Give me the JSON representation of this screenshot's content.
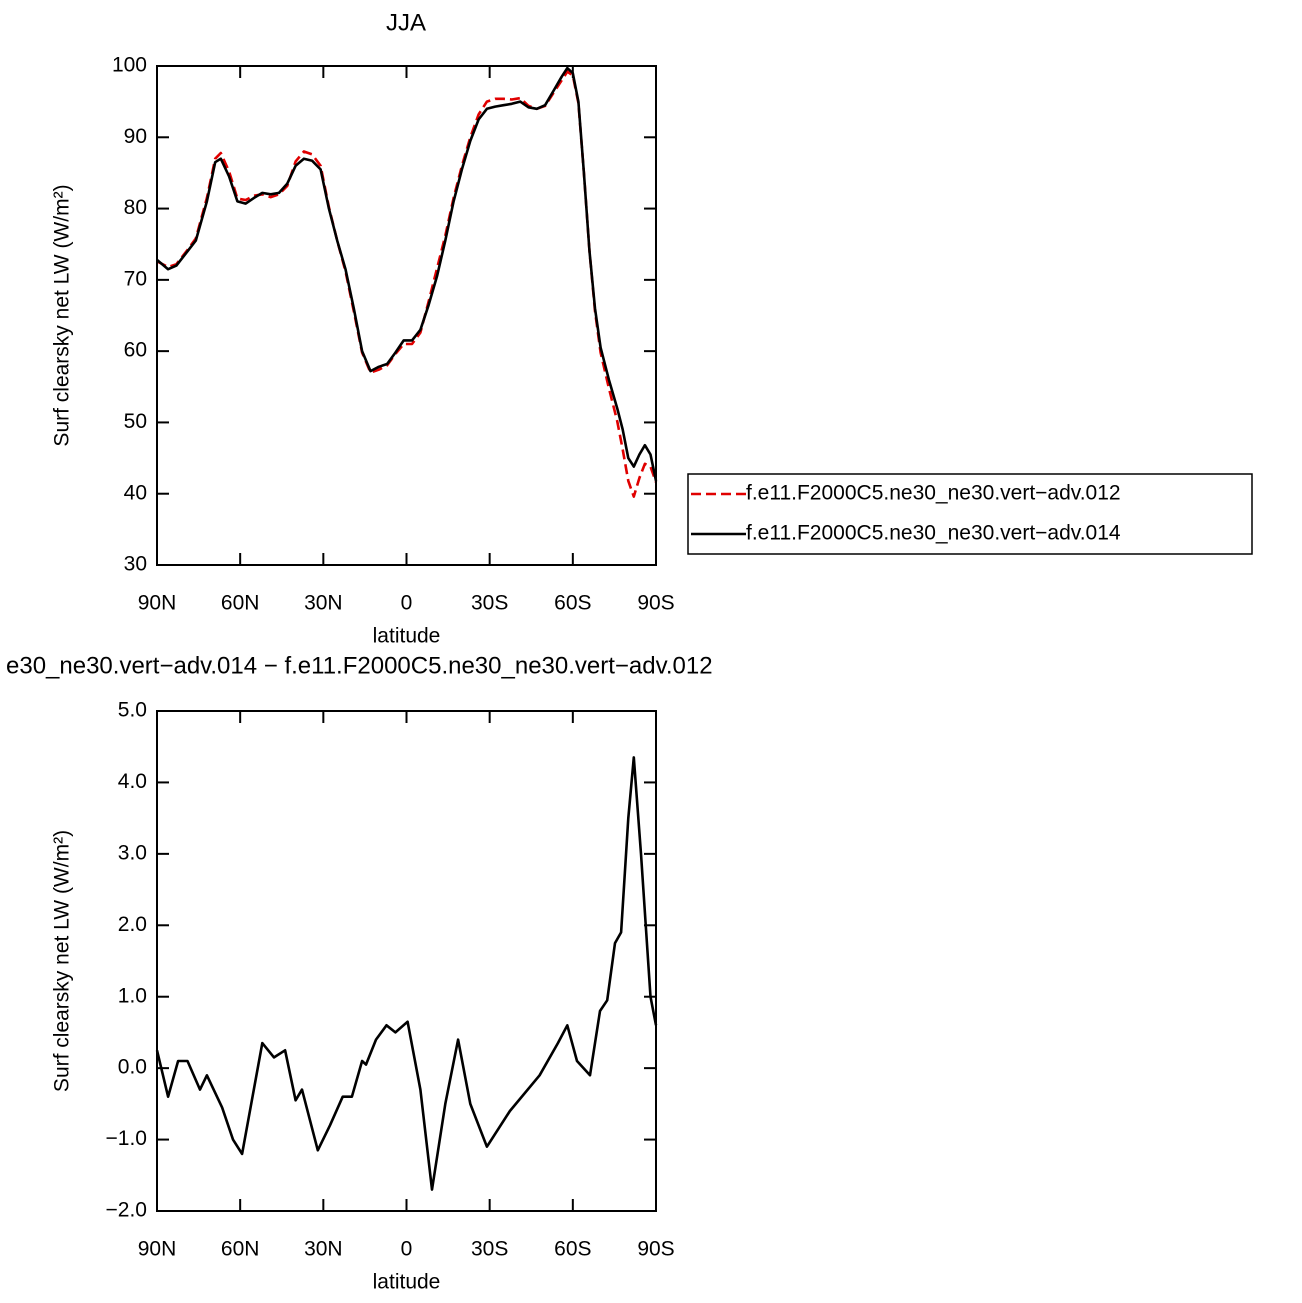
{
  "chart_data": [
    {
      "type": "line",
      "title": "JJA",
      "xlabel": "latitude",
      "ylabel": "Surf clearsky net LW (W/m²)",
      "xlim": [
        90,
        -90
      ],
      "xticks": [
        {
          "value": 90,
          "label": "90N"
        },
        {
          "value": 60,
          "label": "60N"
        },
        {
          "value": 30,
          "label": "30N"
        },
        0,
        {
          "value": -30,
          "label": "30S"
        },
        {
          "value": -60,
          "label": "60S"
        },
        {
          "value": -90,
          "label": "90S"
        }
      ],
      "ylim": [
        30,
        100
      ],
      "yticks": [
        30,
        40,
        50,
        60,
        70,
        80,
        90,
        100
      ],
      "legend": "right",
      "x": [
        90,
        86,
        83,
        79,
        76,
        72,
        69,
        67,
        64,
        61,
        58,
        55,
        52,
        49,
        46,
        43,
        40,
        37,
        34,
        31,
        28,
        25,
        22,
        19,
        16,
        13,
        10,
        7,
        4,
        1,
        -2,
        -5,
        -8,
        -11,
        -14,
        -17,
        -20,
        -23,
        -26,
        -29,
        -32,
        -35,
        -38,
        -41,
        -44,
        -47,
        -50,
        -53,
        -56,
        -58,
        -60,
        -62,
        -64,
        -66,
        -68,
        -70,
        -73,
        -76,
        -78,
        -80,
        -82,
        -84,
        -86,
        -88,
        -90
      ],
      "series": [
        {
          "name": "f.e11.F2000C5.ne30_ne30.vert−adv.012",
          "color": "#e00000",
          "style": "dashed",
          "values": [
            72.6,
            71.8,
            72.2,
            74.2,
            75.8,
            81.5,
            87,
            87.8,
            85.2,
            81.4,
            81.2,
            81.8,
            82.0,
            81.6,
            82.0,
            83.2,
            86.6,
            88.0,
            87.6,
            86.0,
            80.2,
            75.5,
            71.2,
            65.6,
            59.8,
            57.0,
            57.4,
            58.0,
            59.6,
            61.0,
            61.0,
            62.6,
            67.0,
            71.6,
            76.2,
            81.5,
            86.0,
            90.0,
            93.2,
            95.0,
            95.4,
            95.4,
            95.3,
            95.5,
            94.4,
            94.0,
            94.4,
            96.2,
            98.0,
            99.2,
            98.7,
            94.8,
            85.0,
            74.0,
            65.6,
            59.8,
            54.8,
            50.2,
            46.2,
            41.8,
            39.6,
            42.2,
            44.2,
            43.8,
            41.6
          ]
        },
        {
          "name": "f.e11.F2000C5.ne30_ne30.vert−adv.014",
          "color": "#000000",
          "style": "solid",
          "values": [
            72.8,
            71.5,
            72.0,
            74.0,
            75.5,
            81.0,
            86.5,
            87.0,
            84.5,
            81.0,
            80.7,
            81.5,
            82.2,
            82.0,
            82.2,
            83.5,
            86.0,
            87.0,
            86.7,
            85.5,
            80.0,
            75.5,
            71.5,
            66.0,
            60.0,
            57.2,
            57.8,
            58.2,
            59.8,
            61.5,
            61.5,
            63.0,
            66.5,
            70.5,
            75.5,
            81.0,
            85.5,
            89.5,
            92.5,
            94.0,
            94.3,
            94.5,
            94.7,
            95.0,
            94.2,
            94.0,
            94.5,
            96.5,
            98.5,
            99.7,
            99.0,
            95.0,
            85.0,
            74.0,
            66.0,
            60.5,
            56.0,
            52.0,
            49.0,
            45.0,
            43.8,
            45.5,
            46.8,
            45.5,
            41.8
          ]
        }
      ]
    },
    {
      "type": "line",
      "title": "e30_ne30.vert−adv.014 − f.e11.F2000C5.ne30_ne30.vert−adv.012",
      "xlabel": "latitude",
      "ylabel": "Surf clearsky net LW (W/m²)",
      "xlim": [
        90,
        -90
      ],
      "xticks": [
        {
          "value": 90,
          "label": "90N"
        },
        {
          "value": 60,
          "label": "60N"
        },
        {
          "value": 30,
          "label": "30N"
        },
        0,
        {
          "value": -30,
          "label": "30S"
        },
        {
          "value": -60,
          "label": "60S"
        },
        {
          "value": -90,
          "label": "90S"
        }
      ],
      "ylim": [
        -2,
        5
      ],
      "yticks": [
        {
          "value": -2,
          "label": "−2.0"
        },
        {
          "value": -1,
          "label": "−1.0"
        },
        {
          "value": 0,
          "label": "0.0"
        },
        {
          "value": 1,
          "label": "1.0"
        },
        {
          "value": 2,
          "label": "2.0"
        },
        {
          "value": 3,
          "label": "3.0"
        },
        {
          "value": 4,
          "label": "4.0"
        },
        {
          "value": 5,
          "label": "5.0"
        }
      ],
      "color": "#000000",
      "x": [
        90,
        86,
        82.4,
        79,
        74.5,
        72,
        66.5,
        62.6,
        59.3,
        52,
        47.8,
        43.8,
        40,
        37.7,
        32,
        27.6,
        23,
        19.7,
        16,
        14.6,
        11,
        7.2,
        4,
        -0.4,
        -5,
        -9.2,
        -14,
        -18.6,
        -23,
        -29,
        -37.3,
        -48,
        -54.6,
        -58,
        -61.5,
        -66.2,
        -69.8,
        -72.4,
        -75.2,
        -77.4,
        -80,
        -82,
        -84.6,
        -88,
        -90
      ],
      "values": [
        0.25,
        -0.4,
        0.1,
        0.1,
        -0.3,
        -0.1,
        -0.55,
        -1.0,
        -1.2,
        0.35,
        0.15,
        0.25,
        -0.45,
        -0.3,
        -1.15,
        -0.8,
        -0.4,
        -0.4,
        0.1,
        0.05,
        0.4,
        0.6,
        0.5,
        0.65,
        -0.3,
        -1.7,
        -0.5,
        0.4,
        -0.5,
        -1.1,
        -0.6,
        -0.1,
        0.35,
        0.6,
        0.1,
        -0.1,
        0.8,
        0.95,
        1.75,
        1.9,
        3.5,
        4.35,
        3.0,
        1.0,
        0.6
      ]
    }
  ]
}
